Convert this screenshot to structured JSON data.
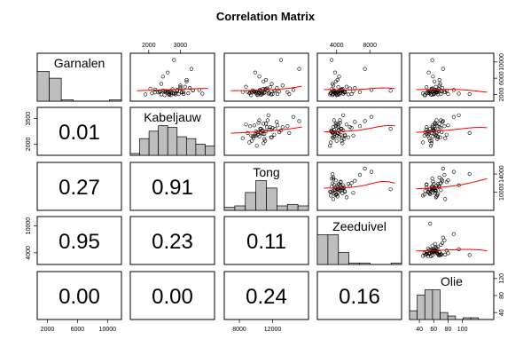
{
  "chart_data": {
    "type": "scatterplot-matrix",
    "title": "Correlation Matrix",
    "variables": [
      "Garnalen",
      "Kabeljauw",
      "Tong",
      "Zeeduivel",
      "Olie"
    ],
    "correlations": [
      {
        "row": "Kabeljauw",
        "col": "Garnalen",
        "label": "0.01"
      },
      {
        "row": "Tong",
        "col": "Garnalen",
        "label": "0.27"
      },
      {
        "row": "Tong",
        "col": "Kabeljauw",
        "label": "0.91"
      },
      {
        "row": "Zeeduivel",
        "col": "Garnalen",
        "label": "0.95"
      },
      {
        "row": "Zeeduivel",
        "col": "Kabeljauw",
        "label": "0.23"
      },
      {
        "row": "Zeeduivel",
        "col": "Tong",
        "label": "0.11"
      },
      {
        "row": "Olie",
        "col": "Garnalen",
        "label": "0.00"
      },
      {
        "row": "Olie",
        "col": "Kabeljauw",
        "label": "0.00"
      },
      {
        "row": "Olie",
        "col": "Tong",
        "label": "0.24"
      },
      {
        "row": "Olie",
        "col": "Zeeduivel",
        "label": "0.16"
      }
    ],
    "histograms": [
      {
        "variable": "Garnalen",
        "range": [
          1000,
          11500
        ],
        "counts": [
          22,
          17,
          1,
          0,
          0,
          0,
          1
        ]
      },
      {
        "variable": "Kabeljauw",
        "range": [
          1500,
          4000
        ],
        "counts": [
          1,
          9,
          13,
          16,
          15,
          10,
          9,
          6,
          5
        ]
      },
      {
        "variable": "Tong",
        "range": [
          6500,
          16000
        ],
        "counts": [
          2,
          3,
          12,
          20,
          15,
          3,
          4,
          3
        ]
      },
      {
        "variable": "Zeeduivel",
        "range": [
          2000,
          13000
        ],
        "counts": [
          20,
          20,
          8,
          1,
          1,
          0,
          0,
          1
        ]
      },
      {
        "variable": "Olie",
        "range": [
          30,
          140
        ],
        "counts": [
          5,
          14,
          17,
          17,
          4,
          2,
          0,
          1,
          1,
          0,
          0
        ]
      }
    ],
    "axes": {
      "Garnalen": {
        "range": [
          1000,
          11500
        ],
        "ticks": [
          2000,
          6000,
          10000
        ],
        "side": "bottom"
      },
      "Kabeljauw": {
        "range": [
          1500,
          4000
        ],
        "ticks": [
          2000,
          3000
        ],
        "tick_labels": [
          "2000",
          "3000"
        ],
        "left_ticks": [
          2000,
          3500
        ],
        "side": "top"
      },
      "Tong": {
        "range": [
          6500,
          16000
        ],
        "ticks": [
          8000,
          12000
        ],
        "right_ticks": [
          10000,
          14000
        ],
        "side": "bottom"
      },
      "Zeeduivel": {
        "range": [
          2000,
          11500
        ],
        "ticks": [
          4000,
          8000
        ],
        "left_ticks": [
          4000,
          10000
        ],
        "side": "top"
      },
      "Olie": {
        "range": [
          30,
          140
        ],
        "ticks": [
          40,
          60,
          80,
          100
        ],
        "right_ticks": [
          40,
          80,
          120
        ],
        "side": "bottom"
      }
    },
    "right_axis_Garnalen": {
      "ticks": [
        2000,
        6000,
        10000
      ]
    },
    "scatter": {
      "Garnalen": [
        2400,
        3100,
        2600,
        2000,
        1800,
        3600,
        2500,
        2200,
        4200,
        2700,
        3000,
        2300,
        1900,
        2100,
        5200,
        2800,
        3300,
        2600,
        6400,
        2400,
        3900,
        2900,
        2000,
        2500,
        3100,
        7400,
        2200,
        2700,
        3500,
        1800,
        2300,
        4600,
        2900,
        2600,
        2100,
        3200,
        2400,
        8300,
        2700,
        3000,
        2200,
        10500,
        2500,
        3800,
        2600,
        2900,
        2300,
        5600,
        2800,
        2100,
        3400,
        2500,
        2000,
        3000
      ],
      "Kabeljauw": [
        2600,
        2900,
        3100,
        2400,
        2700,
        3300,
        2200,
        2800,
        3000,
        2500,
        3400,
        2100,
        2650,
        2950,
        3200,
        2350,
        2750,
        3050,
        2450,
        2850,
        3150,
        2550,
        1900,
        2300,
        3600,
        2600,
        2800,
        2700,
        3000,
        2500,
        3250,
        2400,
        2900,
        2650,
        3100,
        2200,
        2750,
        3350,
        2600,
        2450,
        3700,
        2800,
        2550,
        3000,
        2350,
        2900,
        2700,
        3200,
        2500,
        2650,
        2050,
        3050,
        2850,
        3400
      ],
      "Tong": [
        11000,
        10500,
        9800,
        11800,
        10200,
        12500,
        9500,
        10800,
        13200,
        10000,
        11400,
        9200,
        10600,
        12000,
        10900,
        9700,
        11200,
        13800,
        10400,
        11600,
        8800,
        12200,
        10100,
        11000,
        14500,
        9900,
        10700,
        12800,
        11300,
        9400,
        10300,
        11900,
        10600,
        9000,
        12600,
        11100,
        10000,
        15200,
        10800,
        9600,
        11500,
        13000,
        10200,
        11700,
        8400,
        12300,
        10500,
        11200,
        9800,
        14000,
        10900,
        9300,
        11800,
        10400
      ],
      "Zeeduivel": [
        3800,
        4600,
        4200,
        5400,
        3500,
        6200,
        4000,
        4800,
        3600,
        5000,
        4400,
        3300,
        4100,
        5800,
        3900,
        4700,
        3400,
        6800,
        4300,
        3700,
        5200,
        4500,
        3200,
        4900,
        8200,
        3800,
        4200,
        3600,
        5600,
        4000,
        4400,
        3500,
        10500,
        4100,
        3900,
        4600,
        3300,
        7400,
        4300,
        3700,
        4800,
        3400,
        5000,
        4200,
        3600,
        4500,
        3800,
        4100,
        6000,
        3500,
        4700,
        3900,
        4300,
        3700
      ],
      "Olie": [
        50,
        62,
        58,
        66,
        48,
        72,
        55,
        60,
        68,
        52,
        64,
        45,
        57,
        70,
        61,
        54,
        67,
        75,
        59,
        50,
        63,
        78,
        56,
        65,
        88,
        53,
        60,
        71,
        58,
        47,
        62,
        69,
        55,
        64,
        80,
        57,
        52,
        73,
        61,
        66,
        95,
        58,
        63,
        50,
        76,
        59,
        54,
        68,
        62,
        110,
        57,
        65,
        60,
        70
      ]
    },
    "lowess": "red"
  }
}
